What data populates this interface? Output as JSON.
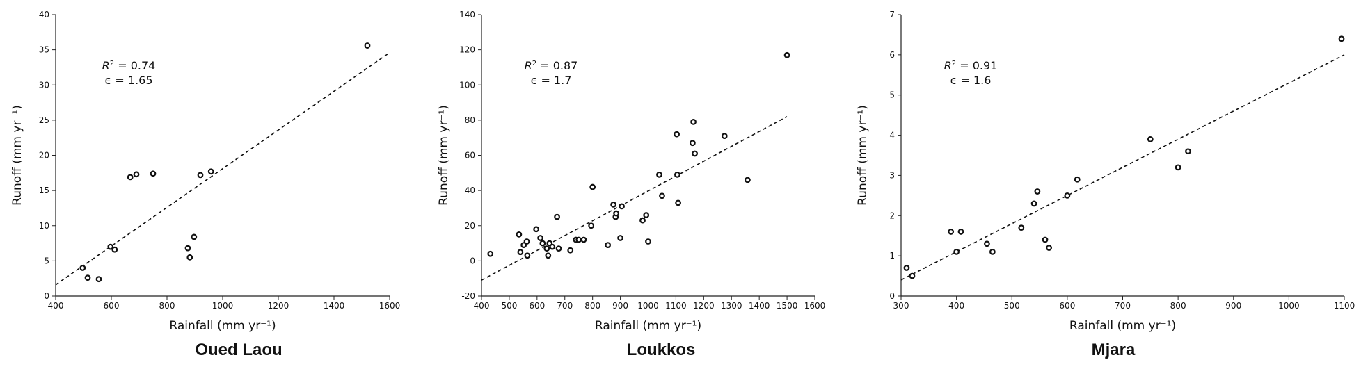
{
  "chart_data": [
    {
      "type": "scatter",
      "title": "Oued Laou",
      "xlabel": "Rainfall (mm yr⁻¹)",
      "ylabel": "Runoff (mm yr⁻¹)",
      "xlim": [
        400,
        1600
      ],
      "ylim": [
        0,
        40
      ],
      "xticks": [
        400,
        600,
        800,
        1000,
        1200,
        1400,
        1600
      ],
      "yticks": [
        0,
        5,
        10,
        15,
        20,
        25,
        30,
        35,
        40
      ],
      "r2": "0.74",
      "epsilon": "1.65",
      "fit": [
        [
          400,
          1.6
        ],
        [
          1600,
          34.6
        ]
      ],
      "points": [
        [
          497,
          4.0
        ],
        [
          515,
          2.6
        ],
        [
          555,
          2.4
        ],
        [
          597,
          7.0
        ],
        [
          612,
          6.6
        ],
        [
          668,
          16.9
        ],
        [
          690,
          17.3
        ],
        [
          750,
          17.4
        ],
        [
          875,
          6.8
        ],
        [
          882,
          5.5
        ],
        [
          897,
          8.4
        ],
        [
          920,
          17.2
        ],
        [
          958,
          17.7
        ],
        [
          1520,
          35.6
        ]
      ]
    },
    {
      "type": "scatter",
      "title": "Loukkos",
      "xlabel": "Rainfall (mm yr⁻¹)",
      "ylabel": "Runoff (mm yr⁻¹)",
      "xlim": [
        400,
        1600
      ],
      "ylim": [
        -20,
        140
      ],
      "xticks": [
        400,
        500,
        600,
        700,
        800,
        900,
        1000,
        1100,
        1200,
        1300,
        1400,
        1500,
        1600
      ],
      "yticks": [
        -20,
        0,
        20,
        40,
        60,
        80,
        100,
        120,
        140
      ],
      "r2": "0.87",
      "epsilon": "1.7",
      "fit": [
        [
          400,
          -11
        ],
        [
          1500,
          82
        ]
      ],
      "points": [
        [
          432,
          4
        ],
        [
          535,
          15
        ],
        [
          540,
          5
        ],
        [
          552,
          9
        ],
        [
          563,
          11
        ],
        [
          565,
          3
        ],
        [
          597,
          18
        ],
        [
          612,
          13
        ],
        [
          620,
          10
        ],
        [
          635,
          7
        ],
        [
          640,
          3
        ],
        [
          645,
          10
        ],
        [
          655,
          8
        ],
        [
          672,
          25
        ],
        [
          678,
          7
        ],
        [
          720,
          6
        ],
        [
          740,
          12
        ],
        [
          750,
          12
        ],
        [
          768,
          12
        ],
        [
          795,
          20
        ],
        [
          800,
          42
        ],
        [
          855,
          9
        ],
        [
          875,
          32
        ],
        [
          883,
          25
        ],
        [
          885,
          27
        ],
        [
          900,
          13
        ],
        [
          905,
          31
        ],
        [
          980,
          23
        ],
        [
          993,
          26
        ],
        [
          1000,
          11
        ],
        [
          1040,
          49
        ],
        [
          1050,
          37
        ],
        [
          1103,
          72
        ],
        [
          1105,
          49
        ],
        [
          1108,
          33
        ],
        [
          1160,
          67
        ],
        [
          1163,
          79
        ],
        [
          1168,
          61
        ],
        [
          1275,
          71
        ],
        [
          1358,
          46
        ],
        [
          1500,
          117
        ]
      ]
    },
    {
      "type": "scatter",
      "title": "Mjara",
      "xlabel": "Rainfall (mm yr⁻¹)",
      "ylabel": "Runoff (mm yr⁻¹)",
      "xlim": [
        300,
        1100
      ],
      "ylim": [
        0,
        7
      ],
      "xticks": [
        300,
        400,
        500,
        600,
        700,
        800,
        900,
        1000,
        1100
      ],
      "yticks": [
        0,
        1,
        2,
        3,
        4,
        5,
        6,
        7
      ],
      "r2": "0.91",
      "epsilon": "1.6",
      "fit": [
        [
          300,
          0.4
        ],
        [
          1100,
          6.0
        ]
      ],
      "points": [
        [
          310,
          0.7
        ],
        [
          320,
          0.5
        ],
        [
          390,
          1.6
        ],
        [
          400,
          1.1
        ],
        [
          408,
          1.6
        ],
        [
          455,
          1.3
        ],
        [
          465,
          1.1
        ],
        [
          517,
          1.7
        ],
        [
          540,
          2.3
        ],
        [
          546,
          2.6
        ],
        [
          560,
          1.4
        ],
        [
          567,
          1.2
        ],
        [
          600,
          2.5
        ],
        [
          618,
          2.9
        ],
        [
          750,
          3.9
        ],
        [
          800,
          3.2
        ],
        [
          818,
          3.6
        ],
        [
          1095,
          6.4
        ]
      ]
    }
  ]
}
